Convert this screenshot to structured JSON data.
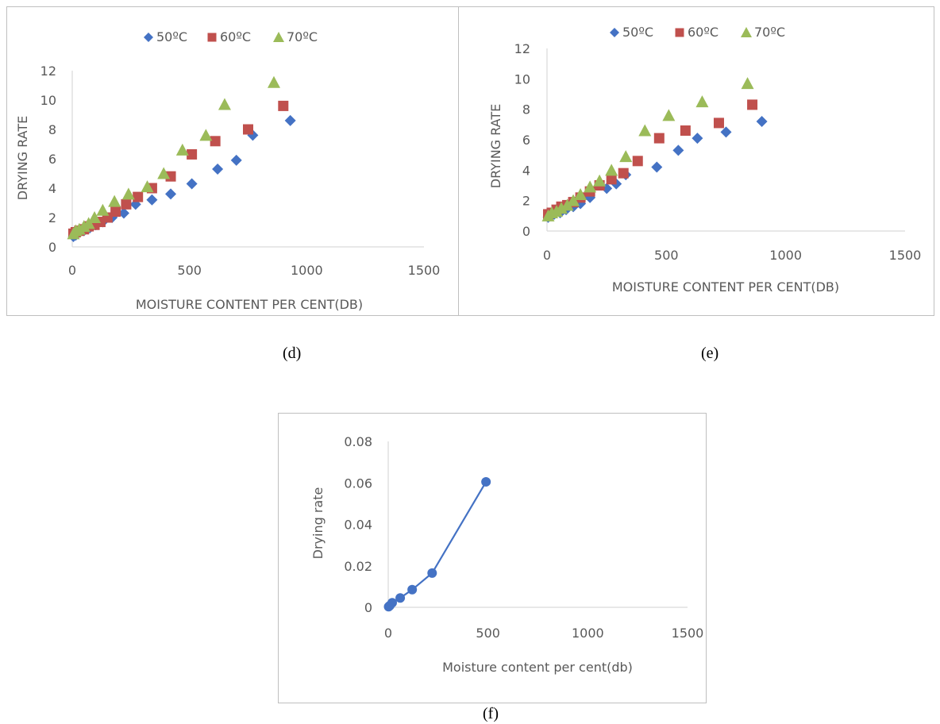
{
  "captions": {
    "d": "(d)",
    "e": "(e)",
    "f": "(f)"
  },
  "colors": {
    "s50": "#4472C4",
    "s60": "#C0504D",
    "s70": "#9BBB59",
    "single": "#4472C4",
    "axis": "#D9D9D9",
    "text": "#595959"
  },
  "chart_data": [
    {
      "id": "d",
      "type": "scatter",
      "title": "",
      "xlabel": "MOISTURE CONTENT PER CENT(DB)",
      "ylabel": "DRYING RATE",
      "xlim": [
        0,
        1500
      ],
      "ylim": [
        0,
        12
      ],
      "xticks": [
        "0",
        "500",
        "1000",
        "1500"
      ],
      "yticks": [
        "0",
        "2",
        "4",
        "6",
        "8",
        "10",
        "12"
      ],
      "legend": "top",
      "series": [
        {
          "name": "50ºC",
          "marker": "diamond",
          "colorKey": "s50",
          "x": [
            5,
            15,
            30,
            50,
            75,
            100,
            130,
            170,
            220,
            270,
            340,
            420,
            510,
            620,
            700,
            770,
            930
          ],
          "y": [
            0.7,
            0.8,
            1.0,
            1.1,
            1.3,
            1.5,
            1.7,
            2.0,
            2.3,
            2.9,
            3.2,
            3.6,
            4.3,
            5.3,
            5.9,
            7.6,
            8.6
          ]
        },
        {
          "name": "60ºC",
          "marker": "square",
          "colorKey": "s60",
          "x": [
            5,
            15,
            30,
            50,
            70,
            95,
            120,
            150,
            185,
            230,
            280,
            340,
            420,
            510,
            610,
            750,
            900
          ],
          "y": [
            0.9,
            1.0,
            1.1,
            1.2,
            1.4,
            1.5,
            1.7,
            2.0,
            2.4,
            2.9,
            3.4,
            4.0,
            4.8,
            6.3,
            7.2,
            8.0,
            9.6
          ]
        },
        {
          "name": "70ºC",
          "marker": "triangle",
          "colorKey": "s70",
          "x": [
            5,
            15,
            30,
            50,
            70,
            95,
            130,
            180,
            240,
            320,
            390,
            470,
            570,
            650,
            860
          ],
          "y": [
            0.9,
            1.1,
            1.2,
            1.4,
            1.6,
            2.0,
            2.5,
            3.1,
            3.6,
            4.1,
            5.0,
            6.6,
            7.6,
            9.7,
            11.2
          ]
        }
      ]
    },
    {
      "id": "e",
      "type": "scatter",
      "title": "",
      "xlabel": "MOISTURE CONTENT PER CENT(DB)",
      "ylabel": "DRYING RATE",
      "xlim": [
        0,
        1500
      ],
      "ylim": [
        0,
        12
      ],
      "xticks": [
        "0",
        "500",
        "1000",
        "1500"
      ],
      "yticks": [
        "0",
        "2",
        "4",
        "6",
        "8",
        "10",
        "12"
      ],
      "legend": "top",
      "series": [
        {
          "name": "50ºC",
          "marker": "diamond",
          "colorKey": "s50",
          "x": [
            5,
            15,
            30,
            55,
            80,
            110,
            140,
            180,
            250,
            290,
            330,
            460,
            550,
            630,
            750,
            900
          ],
          "y": [
            0.9,
            1.0,
            1.1,
            1.2,
            1.4,
            1.6,
            1.8,
            2.2,
            2.8,
            3.1,
            3.7,
            4.2,
            5.3,
            6.1,
            6.5,
            7.2
          ]
        },
        {
          "name": "60ºC",
          "marker": "square",
          "colorKey": "s60",
          "x": [
            5,
            20,
            40,
            60,
            85,
            110,
            140,
            180,
            220,
            270,
            320,
            380,
            470,
            580,
            720,
            860
          ],
          "y": [
            1.1,
            1.2,
            1.4,
            1.6,
            1.7,
            1.9,
            2.2,
            2.6,
            3.0,
            3.4,
            3.8,
            4.6,
            6.1,
            6.6,
            7.1,
            8.3
          ]
        },
        {
          "name": "70ºC",
          "marker": "triangle",
          "colorKey": "s70",
          "x": [
            5,
            20,
            40,
            60,
            85,
            110,
            140,
            180,
            220,
            270,
            330,
            410,
            510,
            650,
            840
          ],
          "y": [
            1.0,
            1.2,
            1.3,
            1.5,
            1.7,
            2.0,
            2.4,
            2.9,
            3.3,
            4.0,
            4.9,
            6.6,
            7.6,
            8.5,
            9.7
          ]
        }
      ]
    },
    {
      "id": "f",
      "type": "line",
      "title": "",
      "xlabel": "Moisture content per cent(db)",
      "ylabel": "Drying rate",
      "xlim": [
        0,
        1500
      ],
      "ylim": [
        0,
        0.08
      ],
      "xticks": [
        "0",
        "500",
        "1000",
        "1500"
      ],
      "yticks": [
        "0",
        "0.02",
        "0.04",
        "0.06",
        "0.08"
      ],
      "series": [
        {
          "marker": "circle",
          "colorKey": "single",
          "x": [
            2,
            8,
            20,
            60,
            120,
            220,
            490
          ],
          "y": [
            0.0003,
            0.0008,
            0.0022,
            0.0045,
            0.0085,
            0.0165,
            0.0605
          ]
        }
      ]
    }
  ]
}
